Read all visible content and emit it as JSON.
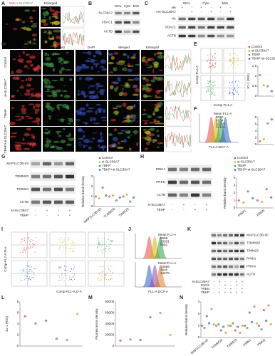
{
  "panel_a": {
    "letter": "A",
    "stains": [
      "Mito",
      "SLC39A7"
    ],
    "joiner": "+",
    "enlarged": "Enlarged"
  },
  "panel_b": {
    "letter": "B",
    "lanes": [
      "WCL",
      "Cyto",
      "Mito"
    ],
    "proteins": [
      "SLC39A7",
      "VDAC1",
      "ACTB"
    ]
  },
  "panel_c": {
    "letter": "C",
    "lanes": [
      "WCL",
      "Cyto",
      "Mito"
    ],
    "conditions": [
      {
        "label": "HA",
        "marks": [
          "+",
          "-",
          "+",
          "-",
          "+",
          "-"
        ]
      },
      {
        "label": "HA-SLC39A7",
        "marks": [
          "-",
          "+",
          "-",
          "+",
          "-",
          "+"
        ]
      }
    ],
    "proteins": [
      "HA",
      "VDAC1",
      "ACTB"
    ]
  },
  "panel_d": {
    "letter": "D",
    "columns": [
      "Mito",
      "FluoZin3",
      "DAPI",
      "Merged",
      "Enlarged"
    ],
    "rows": [
      "Control",
      "si-SLC39A7",
      "TBHP",
      "TBHP+si-SLC39A7"
    ]
  },
  "groups": [
    {
      "name": "Control",
      "color": "#e8453c"
    },
    {
      "name": "si-SLC39A7",
      "color": "#d4b800"
    },
    {
      "name": "TBHP",
      "color": "#2f9e4a"
    },
    {
      "name": "TBHP+si-SLC39A7",
      "color": "#2e5cc7"
    }
  ],
  "panel_e": {
    "letter": "E",
    "x_label": "Comp-FL1-A",
    "y_label": "Comp-FL2-A",
    "chart": {
      "type": "dot",
      "y_label": "JC-1 (R/G)",
      "ylim": [
        0,
        1.5
      ],
      "yticks": [
        0,
        0.5,
        1,
        1.5
      ],
      "series": [
        {
          "color": "#e8453c",
          "values": [
            1.05
          ]
        },
        {
          "color": "#d4b800",
          "values": [
            0.55
          ]
        },
        {
          "color": "#2f9e4a",
          "values": [
            0.5
          ]
        },
        {
          "color": "#2e5cc7",
          "values": [
            0.25
          ]
        }
      ]
    }
  },
  "panel_f": {
    "letter": "F",
    "mean_title": "Mean:FL1-A",
    "means": [
      5020,
      8134,
      31216,
      37121
    ],
    "x_label": "FL1-A:DCF-A",
    "chart": {
      "type": "dot",
      "ylim": [
        0,
        8
      ],
      "yticks": [
        0,
        2,
        4,
        6,
        8
      ],
      "series": [
        {
          "color": "#e8453c",
          "values": [
            1
          ]
        },
        {
          "color": "#d4b800",
          "values": [
            1.6
          ]
        },
        {
          "color": "#2f9e4a",
          "values": [
            6.2
          ]
        },
        {
          "color": "#2e5cc7",
          "values": [
            7.4
          ]
        }
      ]
    }
  },
  "panel_g": {
    "letter": "G",
    "proteins": [
      "MAP1LC3B-I/II",
      "TOMM20",
      "TIMM23",
      "ACTB"
    ],
    "conditions": [
      {
        "label": "si-SLC39A7",
        "marks": [
          "-",
          "+",
          "-",
          "+"
        ]
      },
      {
        "label": "TBHP",
        "marks": [
          "-",
          "-",
          "+",
          "+"
        ]
      }
    ],
    "chart": {
      "type": "dot",
      "y_label": "Relative band density",
      "ylim": [
        0,
        3
      ],
      "yticks": [
        0,
        1,
        2,
        3
      ],
      "categories": [
        "MAP1LC3B-II/I",
        "TOMM20",
        "TIMM23"
      ],
      "series": [
        {
          "color": "#e8453c",
          "values": [
            1,
            1,
            1
          ]
        },
        {
          "color": "#d4b800",
          "values": [
            0.8,
            1.1,
            1.2
          ]
        },
        {
          "color": "#2f9e4a",
          "values": [
            1.9,
            0.6,
            0.5
          ]
        },
        {
          "color": "#2e5cc7",
          "values": [
            1.1,
            0.9,
            0.9
          ]
        }
      ]
    }
  },
  "panel_h": {
    "letter": "H",
    "proteins": [
      "PINK1",
      "PRKN",
      "ACTB"
    ],
    "conditions": [
      {
        "label": "si-SLC39A7",
        "marks": [
          "-",
          "+",
          "-",
          "+"
        ]
      },
      {
        "label": "TBHP",
        "marks": [
          "-",
          "-",
          "+",
          "+"
        ]
      }
    ],
    "chart": {
      "type": "dot",
      "y_label": "Relative band density",
      "ylim": [
        0,
        4
      ],
      "yticks": [
        0,
        1,
        2,
        3,
        4
      ],
      "categories": [
        "PINK1",
        "PRKN"
      ],
      "series": [
        {
          "color": "#e8453c",
          "values": [
            1,
            1
          ]
        },
        {
          "color": "#d4b800",
          "values": [
            0.7,
            0.8
          ]
        },
        {
          "color": "#2f9e4a",
          "values": [
            2.2,
            2.5
          ]
        },
        {
          "color": "#2e5cc7",
          "values": [
            1.3,
            1.4
          ]
        }
      ]
    }
  },
  "panel_i": {
    "letter": "I",
    "x_label": "Comp-FL1-A:G-A",
    "y_label": "Comp-FL2-A:R-A"
  },
  "panel_j": {
    "letter": "J",
    "mean_title": "Mean:FL1-A",
    "sets": [
      [
        8668,
        20031,
        6551
      ],
      [
        13596,
        3945,
        14278
      ]
    ],
    "colors": [
      [
        "#e8453c",
        "#d4b800",
        "#2f9e4a"
      ],
      [
        "#2e5cc7",
        "#8e44ad",
        "#e67e22"
      ]
    ],
    "x_label": "FL1-A:DCF-A"
  },
  "panel_k": {
    "letter": "K",
    "proteins": [
      "MAP1LC3B-I/II",
      "TOMM20",
      "TIMM23",
      "PINK1",
      "PRKN",
      "ACTB"
    ],
    "conditions": [
      {
        "label": "si-SLC39A7",
        "marks": [
          "-",
          "+",
          "-",
          "-",
          "+",
          "+"
        ]
      },
      {
        "label": "ZnCl2",
        "marks": [
          "-",
          "-",
          "+",
          "-",
          "+",
          "-"
        ]
      },
      {
        "label": "TPEN",
        "marks": [
          "-",
          "-",
          "-",
          "+",
          "-",
          "+"
        ]
      },
      {
        "label": "TBHP",
        "marks": [
          "-",
          "+",
          "+",
          "+",
          "+",
          "+"
        ]
      }
    ]
  },
  "panel_l": {
    "letter": "L",
    "chart": {
      "type": "dot",
      "y_label": "JC-1 (R/G)",
      "ylim": [
        0,
        8
      ],
      "yticks": [
        0,
        2,
        4,
        6,
        8
      ],
      "series": [
        {
          "color": "#e8453c",
          "values": [
            5.4
          ]
        },
        {
          "color": "#2f9e4a",
          "values": [
            4.1
          ]
        },
        {
          "color": "#8e44ad",
          "values": [
            4.6
          ]
        },
        {
          "color": "#2e5cc7",
          "values": [
            1.3
          ]
        },
        {
          "color": "#e67e22",
          "values": [
            1.1
          ]
        },
        {
          "color": "#d4b800",
          "values": [
            5.8
          ]
        }
      ]
    }
  },
  "panel_m": {
    "letter": "M",
    "chart": {
      "type": "dot",
      "y_label": "Fluorescence density",
      "ylim": [
        0,
        80000
      ],
      "yticks": [
        0,
        20000,
        40000,
        60000,
        80000
      ],
      "series": [
        {
          "color": "#e8453c",
          "values": [
            10000
          ]
        },
        {
          "color": "#2f9e4a",
          "values": [
            12000
          ]
        },
        {
          "color": "#8e44ad",
          "values": [
            11000
          ]
        },
        {
          "color": "#2e5cc7",
          "values": [
            52000
          ]
        },
        {
          "color": "#e67e22",
          "values": [
            60000
          ]
        },
        {
          "color": "#d4b800",
          "values": [
            20000
          ]
        }
      ]
    }
  },
  "panel_n": {
    "letter": "N",
    "chart": {
      "type": "dot",
      "y_label": "Relative band density",
      "ylim": [
        0,
        3
      ],
      "yticks": [
        0,
        1,
        2,
        3
      ],
      "categories": [
        "MAP1LC3B-II/I",
        "TOMM20",
        "TIMM23",
        "PINK1",
        "PRKN"
      ],
      "series": [
        {
          "color": "#e8453c",
          "values": [
            1,
            1,
            1,
            1,
            1
          ]
        },
        {
          "color": "#2f9e4a",
          "values": [
            0.8,
            1.1,
            1.2,
            0.8,
            0.7
          ]
        },
        {
          "color": "#8e44ad",
          "values": [
            1.8,
            0.6,
            0.6,
            2.1,
            2.3
          ]
        },
        {
          "color": "#2e5cc7",
          "values": [
            1.2,
            0.9,
            0.9,
            1.3,
            1.4
          ]
        },
        {
          "color": "#e67e22",
          "values": [
            2.4,
            0.4,
            0.4,
            2.6,
            2.7
          ]
        },
        {
          "color": "#d4b800",
          "values": [
            1.1,
            1,
            1,
            1.2,
            1.1
          ]
        }
      ]
    }
  }
}
